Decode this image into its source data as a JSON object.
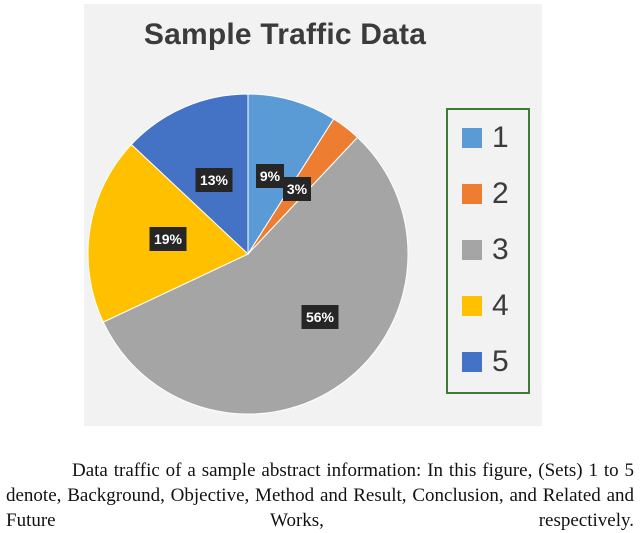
{
  "chart_data": {
    "type": "pie",
    "title": "Sample Traffic Data",
    "categories": [
      "1",
      "2",
      "3",
      "4",
      "5"
    ],
    "values": [
      9,
      3,
      56,
      19,
      13
    ],
    "value_labels": [
      "9%",
      "3%",
      "56%",
      "19%",
      "13%"
    ],
    "colors": [
      "#5b9bd5",
      "#ed7d31",
      "#a5a5a5",
      "#ffc000",
      "#4472c4"
    ],
    "legend_position": "right"
  },
  "caption": "Data traffic of a sample abstract information: In this figure, (Sets) 1 to 5 denote, Background, Objective, Method and Result, Conclusion, and Related and Future Works, respectively."
}
